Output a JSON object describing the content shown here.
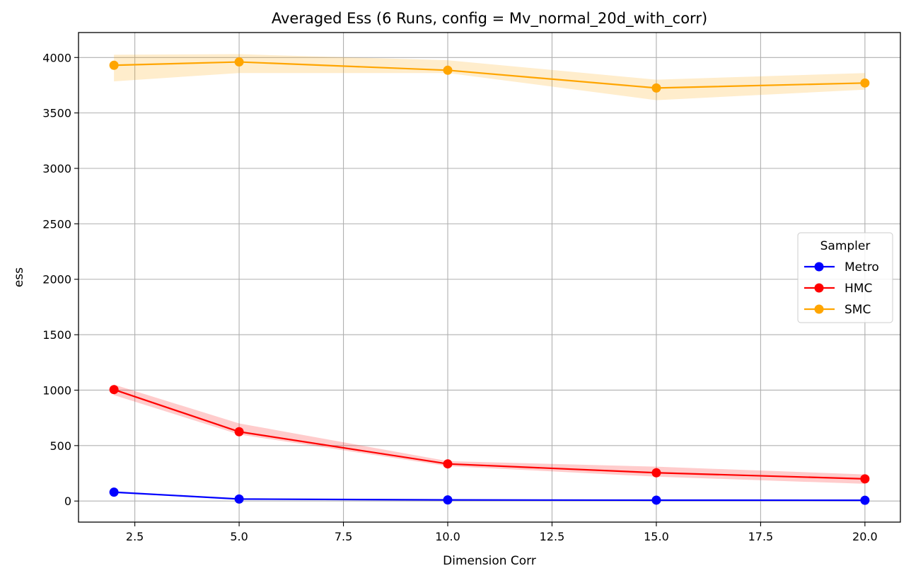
{
  "chart_data": {
    "type": "line",
    "title": "Averaged Ess (6 Runs, config = Mv_normal_20d_with_corr)",
    "xlabel": "Dimension Corr",
    "ylabel": "ess",
    "xlim": [
      1.15,
      20.85
    ],
    "ylim": [
      -190,
      4225
    ],
    "xticks": [
      2.5,
      5.0,
      7.5,
      10.0,
      12.5,
      15.0,
      17.5,
      20.0
    ],
    "xtick_labels": [
      "2.5",
      "5.0",
      "7.5",
      "10.0",
      "12.5",
      "15.0",
      "17.5",
      "20.0"
    ],
    "yticks": [
      0,
      500,
      1000,
      1500,
      2000,
      2500,
      3000,
      3500,
      4000
    ],
    "ytick_labels": [
      "0",
      "500",
      "1000",
      "1500",
      "2000",
      "2500",
      "3000",
      "3500",
      "4000"
    ],
    "grid": true,
    "legend_placement": "center-right",
    "legend_title": "Sampler",
    "x": [
      2,
      5,
      10,
      15,
      20
    ],
    "series": [
      {
        "name": "Metro",
        "color": "#0000ff",
        "values": [
          80,
          18,
          10,
          8,
          7
        ],
        "lower": [
          70,
          14,
          8,
          6,
          5
        ],
        "upper": [
          90,
          22,
          12,
          10,
          9
        ]
      },
      {
        "name": "HMC",
        "color": "#ff0000",
        "values": [
          1005,
          625,
          335,
          255,
          200
        ],
        "lower": [
          955,
          600,
          315,
          220,
          155
        ],
        "upper": [
          1050,
          700,
          360,
          310,
          240
        ]
      },
      {
        "name": "SMC",
        "color": "#ffa500",
        "values": [
          3930,
          3960,
          3885,
          3725,
          3770
        ],
        "lower": [
          3785,
          3860,
          3860,
          3615,
          3710
        ],
        "upper": [
          4025,
          4030,
          3975,
          3800,
          3860
        ]
      }
    ]
  }
}
